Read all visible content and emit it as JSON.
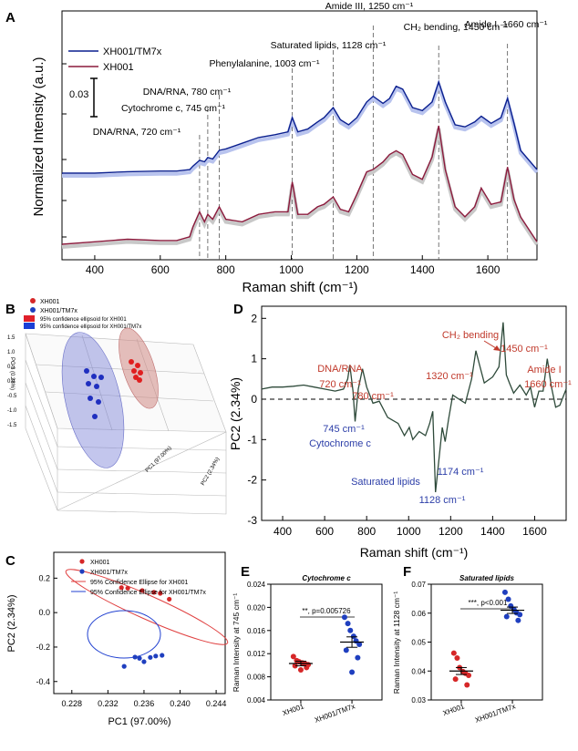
{
  "panel_letters": {
    "a": "A",
    "b": "B",
    "c": "C",
    "d": "D",
    "e": "E",
    "f": "F"
  },
  "colors": {
    "xh001": "#8b1a3c",
    "tm7x": "#0a1f8f",
    "pc2line": "#2e4a3a",
    "red": "#d62728",
    "blue": "#1f3fbf",
    "annotRed": "#c0392b",
    "annotBlue": "#2c3ea8"
  },
  "chart_data": [
    {
      "panel": "A",
      "type": "line",
      "xlabel": "Raman shift (cm⁻¹)",
      "ylabel": "Normalized Intensity (a.u.)",
      "xlim": [
        300,
        1750
      ],
      "xticks": [
        400,
        600,
        800,
        1000,
        1200,
        1400,
        1600
      ],
      "scalebar_label": "0.03",
      "legend": [
        "XH001/TM7x",
        "XH001"
      ],
      "series": [
        {
          "name": "XH001/TM7x",
          "x": [
            300,
            400,
            500,
            600,
            650,
            690,
            700,
            720,
            735,
            745,
            760,
            780,
            800,
            850,
            900,
            950,
            990,
            1003,
            1020,
            1050,
            1080,
            1100,
            1128,
            1150,
            1175,
            1200,
            1230,
            1250,
            1280,
            1300,
            1320,
            1340,
            1370,
            1400,
            1430,
            1450,
            1470,
            1500,
            1530,
            1560,
            1580,
            1610,
            1640,
            1660,
            1680,
            1700,
            1750
          ],
          "y": [
            0.04,
            0.04,
            0.042,
            0.043,
            0.043,
            0.045,
            0.05,
            0.058,
            0.056,
            0.062,
            0.06,
            0.072,
            0.074,
            0.082,
            0.09,
            0.094,
            0.098,
            0.118,
            0.098,
            0.102,
            0.112,
            0.118,
            0.132,
            0.115,
            0.108,
            0.118,
            0.14,
            0.148,
            0.138,
            0.145,
            0.162,
            0.158,
            0.132,
            0.128,
            0.14,
            0.168,
            0.14,
            0.108,
            0.105,
            0.112,
            0.12,
            0.11,
            0.118,
            0.145,
            0.11,
            0.072,
            0.045
          ]
        },
        {
          "name": "XH001",
          "x": [
            300,
            400,
            500,
            600,
            650,
            690,
            700,
            720,
            735,
            745,
            760,
            780,
            800,
            850,
            900,
            950,
            990,
            1003,
            1020,
            1050,
            1080,
            1100,
            1128,
            1150,
            1175,
            1200,
            1230,
            1250,
            1280,
            1300,
            1320,
            1340,
            1370,
            1400,
            1430,
            1450,
            1470,
            1500,
            1530,
            1560,
            1580,
            1610,
            1640,
            1660,
            1680,
            1700,
            1750
          ],
          "y": [
            0.0,
            0.002,
            0.004,
            0.003,
            0.003,
            0.006,
            0.014,
            0.026,
            0.018,
            0.024,
            0.02,
            0.03,
            0.02,
            0.018,
            0.024,
            0.026,
            0.026,
            0.05,
            0.024,
            0.024,
            0.03,
            0.032,
            0.038,
            0.028,
            0.026,
            0.04,
            0.058,
            0.06,
            0.066,
            0.072,
            0.075,
            0.072,
            0.056,
            0.052,
            0.07,
            0.095,
            0.06,
            0.03,
            0.022,
            0.03,
            0.045,
            0.032,
            0.034,
            0.062,
            0.036,
            0.022,
            0.002
          ]
        }
      ],
      "annotations": [
        {
          "x": 720,
          "label": "DNA/RNA, 720 cm⁻¹"
        },
        {
          "x": 745,
          "label": "Cytochrome c, 745 cm⁻¹"
        },
        {
          "x": 780,
          "label": "DNA/RNA, 780 cm⁻¹"
        },
        {
          "x": 1003,
          "label": "Phenylalanine, 1003 cm⁻¹"
        },
        {
          "x": 1128,
          "label": "Saturated lipids, 1128 cm⁻¹"
        },
        {
          "x": 1250,
          "label": "Amide III, 1250 cm⁻¹"
        },
        {
          "x": 1450,
          "label": "CH₂ bending, 1450 cm⁻¹"
        },
        {
          "x": 1660,
          "label": "Amide I, 1660 cm⁻¹"
        }
      ]
    },
    {
      "panel": "B",
      "type": "scatter",
      "xlabel": "PC1 (97.00%)",
      "ylabel": "PC 3 (0.28%)",
      "zlabel": "PC2 (2.34%)",
      "zticks": [
        "1.5",
        "1.0",
        "0.5",
        "0.0",
        "-0.5",
        "-1.0",
        "-1.5"
      ],
      "legend": [
        "XH001",
        "XH001/TM7x",
        "95% confidence ellipsoid for XH001",
        "95% confidence ellipsoid for XH001/TM7x"
      ]
    },
    {
      "panel": "C",
      "type": "scatter",
      "xlabel": "PC1 (97.00%)",
      "ylabel": "PC2 (2.34%)",
      "xlim": [
        0.226,
        0.245
      ],
      "ylim": [
        -0.47,
        0.35
      ],
      "xticks": [
        "0.228",
        "0.232",
        "0.236",
        "0.240",
        "0.244"
      ],
      "yticks": [
        "0.2",
        "0.0",
        "-0.2",
        "-0.4"
      ],
      "legend": [
        "XH001",
        "XH001/TM7x",
        "95% Confidence Ellipse for XH001",
        "95% Confidence Ellipse for XH001/TM7x"
      ],
      "series": [
        {
          "name": "XH001",
          "x": [
            0.2335,
            0.2342,
            0.2358,
            0.2371,
            0.2378,
            0.2388
          ],
          "y": [
            0.145,
            0.142,
            0.128,
            0.118,
            0.112,
            0.078
          ]
        },
        {
          "name": "XH001/TM7x",
          "x": [
            0.2338,
            0.235,
            0.2355,
            0.236,
            0.2367,
            0.2373,
            0.238
          ],
          "y": [
            -0.312,
            -0.258,
            -0.265,
            -0.285,
            -0.26,
            -0.252,
            -0.248
          ]
        }
      ]
    },
    {
      "panel": "D",
      "type": "line",
      "xlabel": "Raman shift (cm⁻¹)",
      "ylabel": "PC2 (2.34%)",
      "xlim": [
        300,
        1750
      ],
      "ylim": [
        -3,
        2.3
      ],
      "xticks": [
        "400",
        "600",
        "800",
        "1000",
        "1200",
        "1400",
        "1600"
      ],
      "yticks": [
        "2",
        "1",
        "0",
        "-1",
        "-2",
        "-3"
      ],
      "series": [
        {
          "name": "PC2 loading",
          "x": [
            300,
            350,
            400,
            450,
            500,
            550,
            600,
            650,
            690,
            710,
            720,
            735,
            745,
            760,
            780,
            800,
            830,
            860,
            900,
            950,
            980,
            1003,
            1020,
            1050,
            1080,
            1100,
            1115,
            1128,
            1140,
            1160,
            1174,
            1190,
            1210,
            1240,
            1270,
            1300,
            1320,
            1335,
            1360,
            1400,
            1430,
            1450,
            1465,
            1480,
            1500,
            1530,
            1560,
            1580,
            1600,
            1620,
            1640,
            1660,
            1680,
            1700,
            1720,
            1750
          ],
          "y": [
            0.25,
            0.3,
            0.3,
            0.32,
            0.35,
            0.3,
            0.25,
            0.2,
            0.25,
            0.5,
            0.85,
            0.2,
            -0.55,
            0.25,
            0.75,
            0.3,
            -0.1,
            -0.05,
            -0.45,
            -0.6,
            -0.9,
            -0.7,
            -1.0,
            -0.8,
            -0.9,
            -0.6,
            -0.3,
            -2.3,
            -1.7,
            -0.7,
            -1.05,
            -0.5,
            0.1,
            0.0,
            -0.1,
            0.5,
            1.2,
            0.9,
            0.4,
            0.55,
            0.8,
            1.9,
            0.6,
            0.4,
            0.15,
            0.35,
            0.1,
            0.3,
            -0.2,
            0.2,
            0.2,
            1.0,
            0.3,
            -0.2,
            -0.15,
            0.25
          ]
        }
      ],
      "annotations": [
        {
          "label": "DNA/RNA",
          "color": "red"
        },
        {
          "label": "720 cm⁻¹",
          "color": "red"
        },
        {
          "label": "780 cm⁻¹",
          "color": "red"
        },
        {
          "label": "CH₂ bending",
          "color": "red"
        },
        {
          "label": "1450 cm⁻¹",
          "color": "red"
        },
        {
          "label": "1320 cm⁻¹",
          "color": "red"
        },
        {
          "label": "Amide I",
          "color": "red"
        },
        {
          "label": "1660 cm⁻¹",
          "color": "red"
        },
        {
          "label": "745 cm⁻¹",
          "color": "blue"
        },
        {
          "label": "Cytochrome c",
          "color": "blue"
        },
        {
          "label": "Saturated lipids",
          "color": "blue"
        },
        {
          "label": "1174 cm⁻¹",
          "color": "blue"
        },
        {
          "label": "1128 cm⁻¹",
          "color": "blue"
        }
      ]
    },
    {
      "panel": "E",
      "type": "scatter",
      "title": "Cytochrome c",
      "ylabel": "Raman Intensity at 745 cm⁻¹",
      "ylim": [
        0.004,
        0.024
      ],
      "yticks": [
        "0.024",
        "0.020",
        "0.016",
        "0.012",
        "0.008",
        "0.004"
      ],
      "categories": [
        "XH001",
        "XH001/TM7x"
      ],
      "significance": "**, p=0.005726",
      "series": [
        {
          "name": "XH001",
          "values": [
            0.0115,
            0.0108,
            0.0106,
            0.0104,
            0.0103,
            0.0101,
            0.0099,
            0.0096,
            0.0092
          ],
          "mean": 0.0103,
          "sem": 0.0004
        },
        {
          "name": "XH001/TM7x",
          "values": [
            0.0183,
            0.0172,
            0.016,
            0.015,
            0.0142,
            0.0136,
            0.0126,
            0.0113,
            0.0088
          ],
          "mean": 0.014,
          "sem": 0.0009
        }
      ]
    },
    {
      "panel": "F",
      "type": "scatter",
      "title": "Saturated lipids",
      "ylabel": "Raman Intensity at 1128 cm⁻¹",
      "ylim": [
        0.03,
        0.07
      ],
      "yticks": [
        "0.07",
        "0.06",
        "0.05",
        "0.04",
        "0.03"
      ],
      "categories": [
        "XH001",
        "XH001/TM7x"
      ],
      "significance": "***, p<0.001",
      "series": [
        {
          "name": "XH001",
          "values": [
            0.0462,
            0.0445,
            0.0412,
            0.0398,
            0.0392,
            0.0385,
            0.0372,
            0.0352
          ],
          "mean": 0.04,
          "sem": 0.0012
        },
        {
          "name": "XH001/TM7x",
          "values": [
            0.0672,
            0.0648,
            0.0625,
            0.0612,
            0.0601,
            0.0595,
            0.0588,
            0.0575
          ],
          "mean": 0.061,
          "sem": 0.0011
        }
      ]
    }
  ]
}
